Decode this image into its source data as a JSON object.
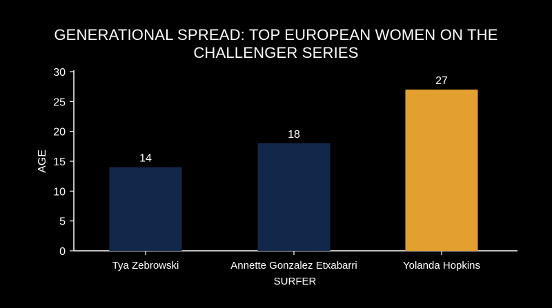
{
  "chart_data": {
    "type": "bar",
    "title": "GENERATIONAL SPREAD: TOP EUROPEAN WOMEN ON THE CHALLENGER SERIES",
    "xlabel": "SURFER",
    "ylabel": "AGE",
    "categories": [
      "Tya Zebrowski",
      "Annette Gonzalez Etxabarri",
      "Yolanda Hopkins"
    ],
    "values": [
      14,
      18,
      27
    ],
    "bar_colors": [
      "#12284b",
      "#12284b",
      "#e3a02f"
    ],
    "ylim": [
      0,
      30
    ],
    "yticks": [
      0,
      5,
      10,
      15,
      20,
      25,
      30
    ],
    "data_labels": [
      "14",
      "18",
      "27"
    ],
    "grid": false,
    "legend": "none"
  },
  "colors": {
    "background": "#000000",
    "axis": "#ffffff",
    "text": "#ffffff"
  }
}
